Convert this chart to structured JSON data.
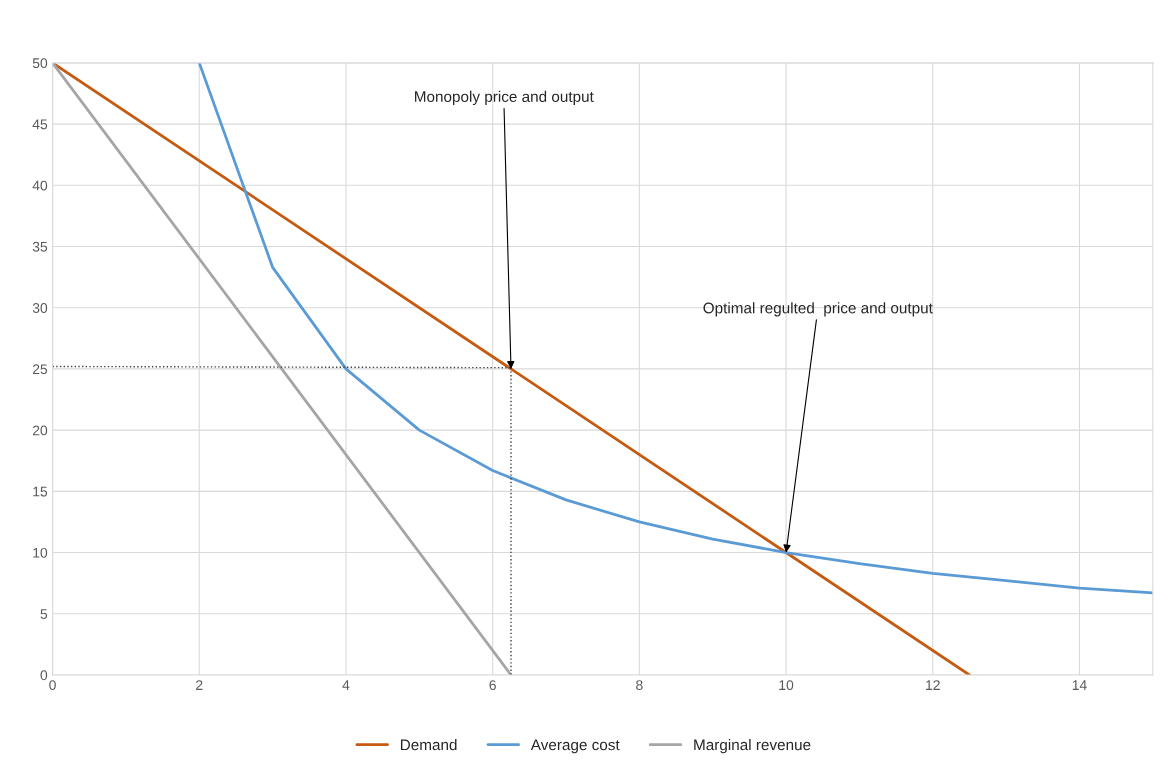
{
  "chart_data": {
    "type": "line",
    "series": [
      {
        "name": "Demand",
        "color": "#c55a11",
        "x": [
          0,
          12.5
        ],
        "values": [
          50,
          0
        ]
      },
      {
        "name": "Average cost",
        "color": "#5b9bd5",
        "x": [
          2,
          3,
          4,
          5,
          6,
          7,
          8,
          9,
          10,
          11,
          12,
          13,
          14,
          15
        ],
        "values": [
          50,
          33.3,
          25,
          20,
          16.7,
          14.3,
          12.5,
          11.1,
          10,
          9.1,
          8.3,
          7.7,
          7.1,
          6.7
        ]
      },
      {
        "name": "Marginal revenue",
        "color": "#a5a5a5",
        "x": [
          0,
          6.25
        ],
        "values": [
          50,
          0
        ]
      },
      {
        "color": "#404040",
        "line_style": "dotted",
        "x": [
          0,
          6.25
        ],
        "values": [
          25.2,
          25.1
        ]
      },
      {
        "color": "#404040",
        "line_style": "dotted",
        "x": [
          6.25,
          6.25
        ],
        "values": [
          25.1,
          0
        ]
      }
    ],
    "xlim": [
      0,
      15
    ],
    "xticks": [
      0,
      2,
      4,
      6,
      8,
      10,
      12,
      14
    ],
    "ylim": [
      0,
      50
    ],
    "yticks": [
      0,
      5,
      10,
      15,
      20,
      25,
      30,
      35,
      40,
      45,
      50
    ],
    "grid": true,
    "legend": "bottom",
    "marker": "none",
    "line_style": "solid",
    "annotations": [
      {
        "text": "Monopoly price and output",
        "x": 6.25,
        "y": 25
      },
      {
        "text": "Optimal regulted  price and output",
        "x": 10,
        "y": 10
      }
    ]
  }
}
